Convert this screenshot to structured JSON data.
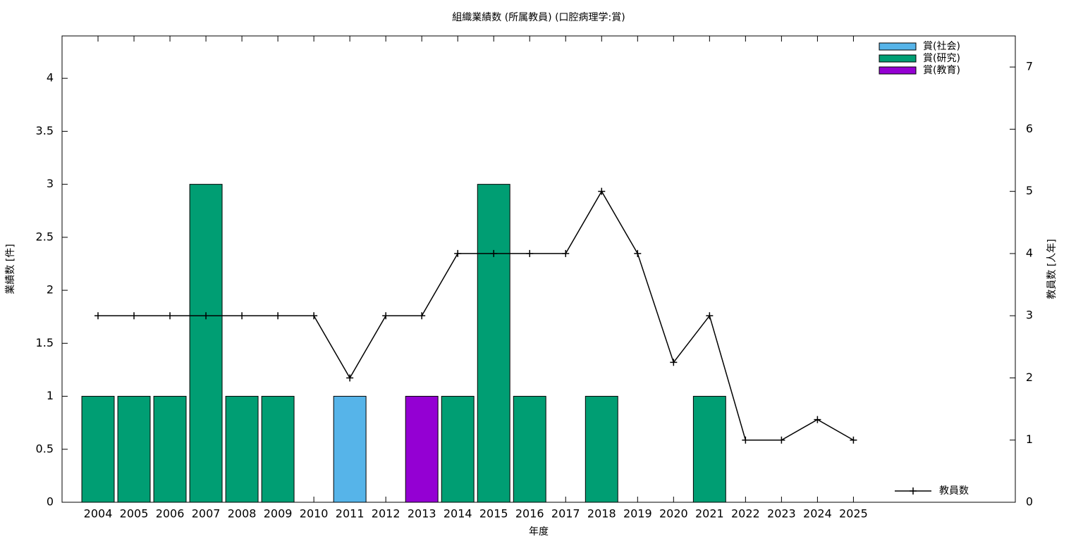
{
  "chart_data": {
    "type": "bar",
    "stacked": true,
    "title": "組織業績数 (所属教員) (口腔病理学:賞)",
    "xlabel": "年度",
    "ylabel": "業績数 [件]",
    "y2label": "教員数 [人年]",
    "categories": [
      "2004",
      "2005",
      "2006",
      "2007",
      "2008",
      "2009",
      "2010",
      "2011",
      "2012",
      "2013",
      "2014",
      "2015",
      "2016",
      "2017",
      "2018",
      "2019",
      "2020",
      "2021",
      "2022",
      "2023",
      "2024",
      "2025"
    ],
    "series": [
      {
        "name": "賞(社会)",
        "color": "#56b4e9",
        "values": [
          0,
          0,
          0,
          0,
          0,
          0,
          0,
          1,
          0,
          0,
          0,
          0,
          0,
          0,
          0,
          0,
          0,
          0,
          0,
          0,
          0,
          0
        ]
      },
      {
        "name": "賞(研究)",
        "color": "#009e73",
        "values": [
          1,
          1,
          1,
          3,
          1,
          1,
          0,
          0,
          0,
          0,
          1,
          3,
          1,
          0,
          1,
          0,
          0,
          1,
          0,
          0,
          0,
          0
        ]
      },
      {
        "name": "賞(教育)",
        "color": "#9400d3",
        "values": [
          0,
          0,
          0,
          0,
          0,
          0,
          0,
          0,
          0,
          1,
          0,
          0,
          0,
          0,
          0,
          0,
          0,
          0,
          0,
          0,
          0,
          0
        ]
      },
      {
        "name": "教員数",
        "color": "#000000",
        "type": "line",
        "axis": "y2",
        "values": [
          3,
          3,
          3,
          3,
          3,
          3,
          3,
          2,
          3,
          3,
          4,
          4,
          4,
          4,
          5,
          4,
          2.25,
          3,
          1,
          1,
          1.33,
          1
        ]
      }
    ],
    "ylim": [
      0,
      4.4
    ],
    "yticks": [
      0,
      0.5,
      1,
      1.5,
      2,
      2.5,
      3,
      3.5,
      4
    ],
    "y2lim": [
      0,
      7.5
    ],
    "y2ticks": [
      0,
      1,
      2,
      3,
      4,
      5,
      6,
      7
    ],
    "legend": "top right"
  }
}
